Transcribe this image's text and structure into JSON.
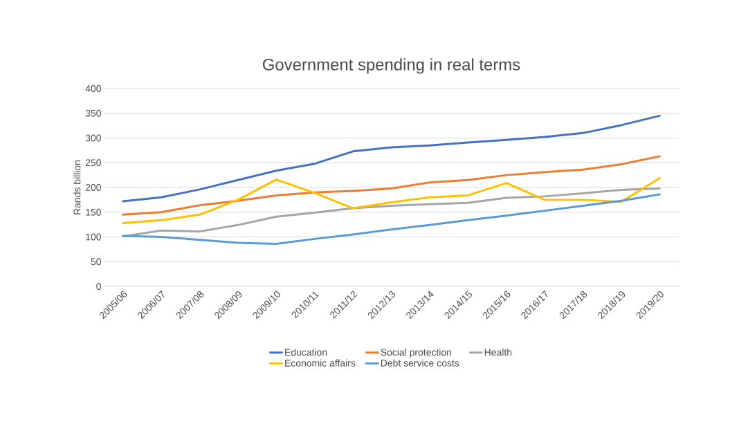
{
  "chart_data": {
    "type": "line",
    "title": "Government spending in real terms",
    "ylabel": "Rands billion",
    "categories": [
      "2005/06",
      "2006/07",
      "2007/08",
      "2008/09",
      "2009/10",
      "2010/11",
      "2011/12",
      "2012/13",
      "2013/14",
      "2014/15",
      "2015/16",
      "2016/17",
      "2017/18",
      "2018/19",
      "2019/20"
    ],
    "series": [
      {
        "name": "Education",
        "color": "#4472c4",
        "values": [
          172,
          180,
          196,
          215,
          234,
          248,
          273,
          281,
          285,
          291,
          296,
          302,
          310,
          326,
          345
        ]
      },
      {
        "name": "Social protection",
        "color": "#ed7d31",
        "values": [
          145,
          150,
          164,
          173,
          184,
          190,
          193,
          198,
          210,
          215,
          225,
          231,
          236,
          247,
          263
        ]
      },
      {
        "name": "Health",
        "color": "#a5a5a5",
        "values": [
          101,
          113,
          111,
          124,
          141,
          149,
          158,
          163,
          166,
          169,
          179,
          182,
          188,
          195,
          198
        ]
      },
      {
        "name": "Economic affairs",
        "color": "#ffc000",
        "values": [
          128,
          134,
          145,
          175,
          216,
          189,
          158,
          170,
          180,
          184,
          209,
          175,
          175,
          171,
          219
        ]
      },
      {
        "name": "Debt service costs",
        "color": "#5b9bd5",
        "values": [
          102,
          100,
          94,
          88,
          86,
          96,
          105,
          115,
          124,
          134,
          143,
          153,
          163,
          173,
          186
        ]
      }
    ],
    "ylim": [
      0,
      400
    ],
    "yticks": [
      0,
      50,
      100,
      150,
      200,
      250,
      300,
      350,
      400
    ],
    "grid": "y",
    "legend": "bottom",
    "marker": "none",
    "line_style": "solid"
  }
}
